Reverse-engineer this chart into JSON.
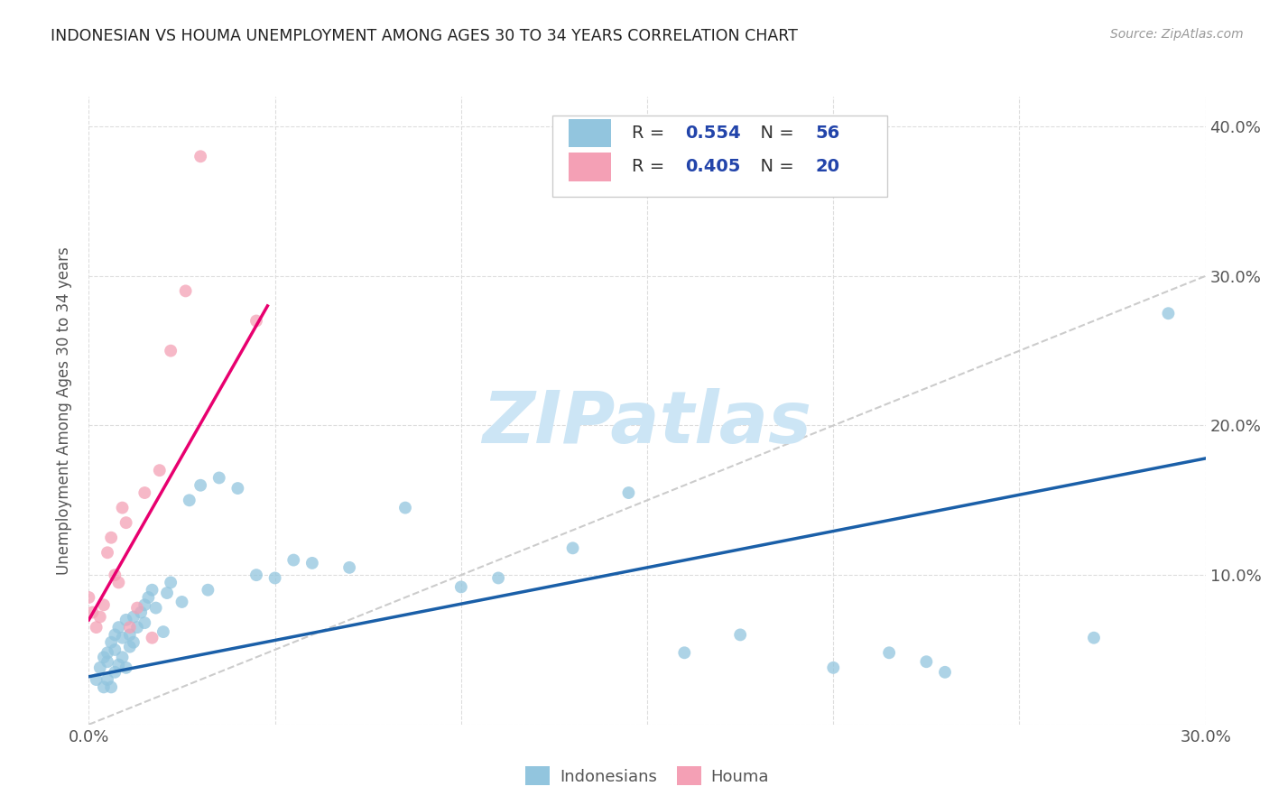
{
  "title": "INDONESIAN VS HOUMA UNEMPLOYMENT AMONG AGES 30 TO 34 YEARS CORRELATION CHART",
  "source": "Source: ZipAtlas.com",
  "ylabel": "Unemployment Among Ages 30 to 34 years",
  "xlim": [
    0.0,
    0.3
  ],
  "ylim": [
    0.0,
    0.42
  ],
  "xticks": [
    0.0,
    0.05,
    0.1,
    0.15,
    0.2,
    0.25,
    0.3
  ],
  "yticks": [
    0.0,
    0.1,
    0.2,
    0.3,
    0.4
  ],
  "watermark": "ZIPatlas",
  "legend_r1": "R = 0.554",
  "legend_n1": "N = 56",
  "legend_r2": "R = 0.405",
  "legend_n2": "N = 20",
  "color_indonesian": "#92c5de",
  "color_houma": "#f4a0b5",
  "color_line_indonesian": "#1a5fa8",
  "color_line_houma": "#e8006f",
  "color_diag": "#cccccc",
  "indonesian_x": [
    0.002,
    0.003,
    0.004,
    0.004,
    0.005,
    0.005,
    0.005,
    0.006,
    0.006,
    0.007,
    0.007,
    0.007,
    0.008,
    0.008,
    0.009,
    0.009,
    0.01,
    0.01,
    0.011,
    0.011,
    0.012,
    0.012,
    0.013,
    0.014,
    0.015,
    0.015,
    0.016,
    0.017,
    0.018,
    0.02,
    0.021,
    0.022,
    0.025,
    0.027,
    0.03,
    0.032,
    0.035,
    0.04,
    0.045,
    0.05,
    0.055,
    0.06,
    0.07,
    0.085,
    0.1,
    0.11,
    0.13,
    0.145,
    0.16,
    0.175,
    0.2,
    0.215,
    0.225,
    0.23,
    0.27,
    0.29
  ],
  "indonesian_y": [
    0.03,
    0.038,
    0.025,
    0.045,
    0.03,
    0.042,
    0.048,
    0.025,
    0.055,
    0.035,
    0.05,
    0.06,
    0.04,
    0.065,
    0.045,
    0.058,
    0.038,
    0.07,
    0.052,
    0.06,
    0.055,
    0.072,
    0.065,
    0.075,
    0.068,
    0.08,
    0.085,
    0.09,
    0.078,
    0.062,
    0.088,
    0.095,
    0.082,
    0.15,
    0.16,
    0.09,
    0.165,
    0.158,
    0.1,
    0.098,
    0.11,
    0.108,
    0.105,
    0.145,
    0.092,
    0.098,
    0.118,
    0.155,
    0.048,
    0.06,
    0.038,
    0.048,
    0.042,
    0.035,
    0.058,
    0.275
  ],
  "houma_x": [
    0.0,
    0.001,
    0.002,
    0.003,
    0.004,
    0.005,
    0.006,
    0.007,
    0.008,
    0.009,
    0.01,
    0.011,
    0.013,
    0.015,
    0.017,
    0.019,
    0.022,
    0.026,
    0.03,
    0.045
  ],
  "houma_y": [
    0.085,
    0.075,
    0.065,
    0.072,
    0.08,
    0.115,
    0.125,
    0.1,
    0.095,
    0.145,
    0.135,
    0.065,
    0.078,
    0.155,
    0.058,
    0.17,
    0.25,
    0.29,
    0.38,
    0.27
  ],
  "indonesian_line_x": [
    0.0,
    0.3
  ],
  "indonesian_line_y": [
    0.032,
    0.178
  ],
  "houma_line_x": [
    0.0,
    0.048
  ],
  "houma_line_y": [
    0.07,
    0.28
  ],
  "diag_line_x": [
    0.0,
    0.3
  ],
  "diag_line_y": [
    0.0,
    0.3
  ]
}
